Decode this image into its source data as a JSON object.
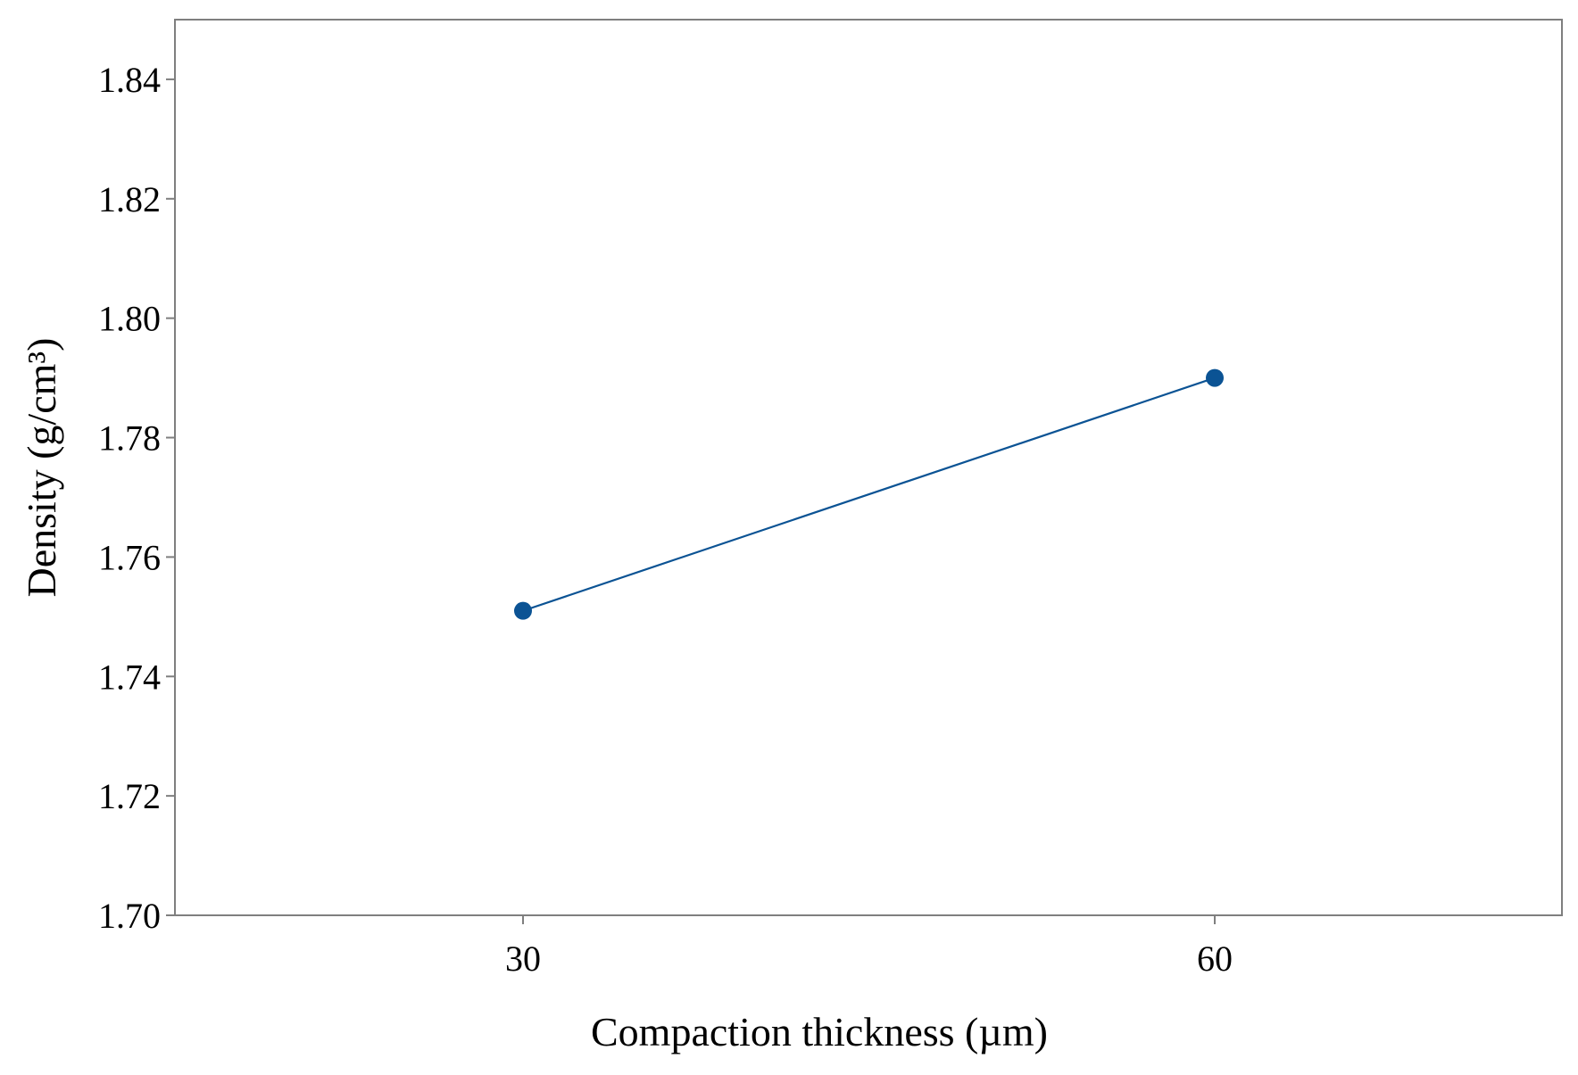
{
  "chart_data": {
    "type": "line",
    "title": "",
    "xlabel": "Compaction thickness (µm)",
    "ylabel": "Density (g/cm³)",
    "x_categories": [
      "30",
      "60"
    ],
    "y_ticks": [
      "1.70",
      "1.72",
      "1.74",
      "1.76",
      "1.78",
      "1.80",
      "1.82",
      "1.84"
    ],
    "ylim": [
      1.7,
      1.85
    ],
    "grid": false,
    "legend": "none",
    "series": [
      {
        "x": [
          "30",
          "60"
        ],
        "values": [
          1.751,
          1.79
        ],
        "color": "#0b5394"
      }
    ],
    "colors": {
      "axis": "#7f7f7f",
      "line": "#0b5394",
      "marker": "#0b5394"
    }
  }
}
